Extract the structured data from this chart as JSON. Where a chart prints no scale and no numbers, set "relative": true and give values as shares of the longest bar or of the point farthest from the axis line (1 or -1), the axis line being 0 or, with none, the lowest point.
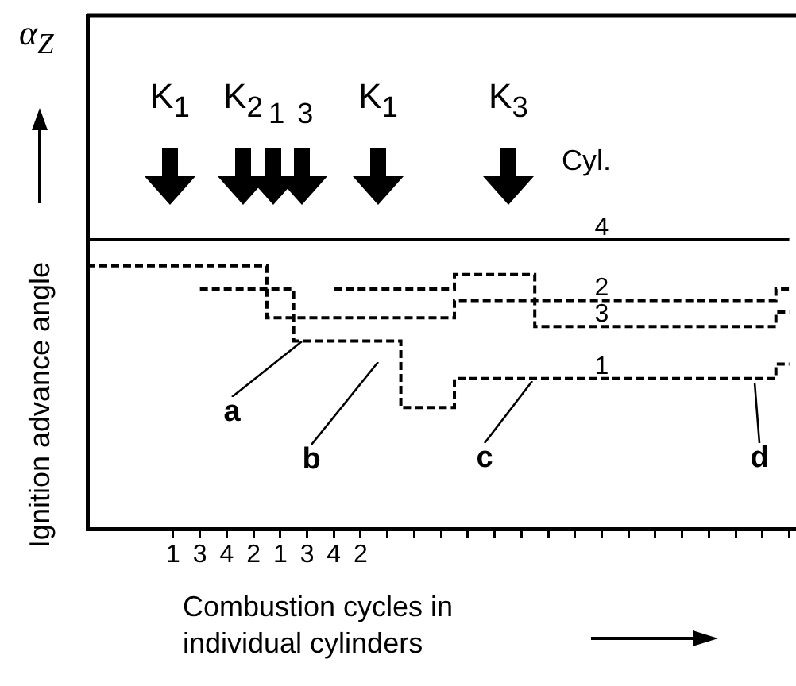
{
  "chart_data": {
    "type": "step",
    "relative": true,
    "xlabel": "Combustion cycles in individual cylinders",
    "ylabel": "Ignition advance angle",
    "categories": [
      "1",
      "3",
      "4",
      "2",
      "1",
      "3",
      "4",
      "2",
      null,
      null,
      null,
      null,
      null,
      null,
      null,
      null,
      null,
      null,
      null,
      null,
      null,
      null,
      null,
      null
    ],
    "series": [
      {
        "name": "4",
        "color": "#000000",
        "line_style": "solid",
        "values": [
          1.0,
          1.0,
          1.0,
          1.0,
          1.0,
          1.0,
          1.0,
          1.0,
          1.0,
          1.0,
          1.0,
          1.0,
          1.0,
          1.0,
          1.0,
          1.0,
          1.0,
          1.0,
          1.0,
          1.0,
          1.0,
          1.0,
          1.0,
          1.0
        ]
      },
      {
        "name": "2",
        "color": "#000000",
        "line_style": "dashed",
        "values": [
          0.91,
          0.91,
          0.91,
          0.91,
          0.73,
          0.73,
          0.73,
          0.73,
          0.73,
          0.73,
          0.73,
          0.79,
          0.79,
          0.79,
          0.79,
          0.79,
          0.79,
          0.79,
          0.79,
          0.79,
          0.79,
          0.79,
          0.79,
          0.83
        ]
      },
      {
        "name": "3",
        "color": "#000000",
        "line_style": "dashed",
        "values": [
          null,
          null,
          null,
          null,
          null,
          null,
          0.83,
          0.83,
          0.83,
          0.83,
          0.83,
          0.88,
          0.88,
          0.88,
          0.7,
          0.7,
          0.7,
          0.7,
          0.7,
          0.7,
          0.7,
          0.7,
          0.7,
          0.75
        ]
      },
      {
        "name": "1",
        "color": "#000000",
        "line_style": "dashed",
        "values": [
          null,
          0.83,
          0.83,
          0.83,
          0.83,
          0.65,
          0.65,
          0.65,
          0.65,
          0.42,
          0.42,
          0.52,
          0.52,
          0.52,
          0.52,
          0.52,
          0.52,
          0.52,
          0.52,
          0.52,
          0.52,
          0.52,
          0.52,
          0.57
        ]
      }
    ],
    "annotations": [
      "α$_{Z}$",
      "Cyl.",
      "K$_{1}$",
      "K$_{2}$",
      "$_{1}$",
      "$_{3}$",
      "K$_{1}$",
      "K$_{3}$",
      "a",
      "b",
      "c",
      "d"
    ]
  }
}
